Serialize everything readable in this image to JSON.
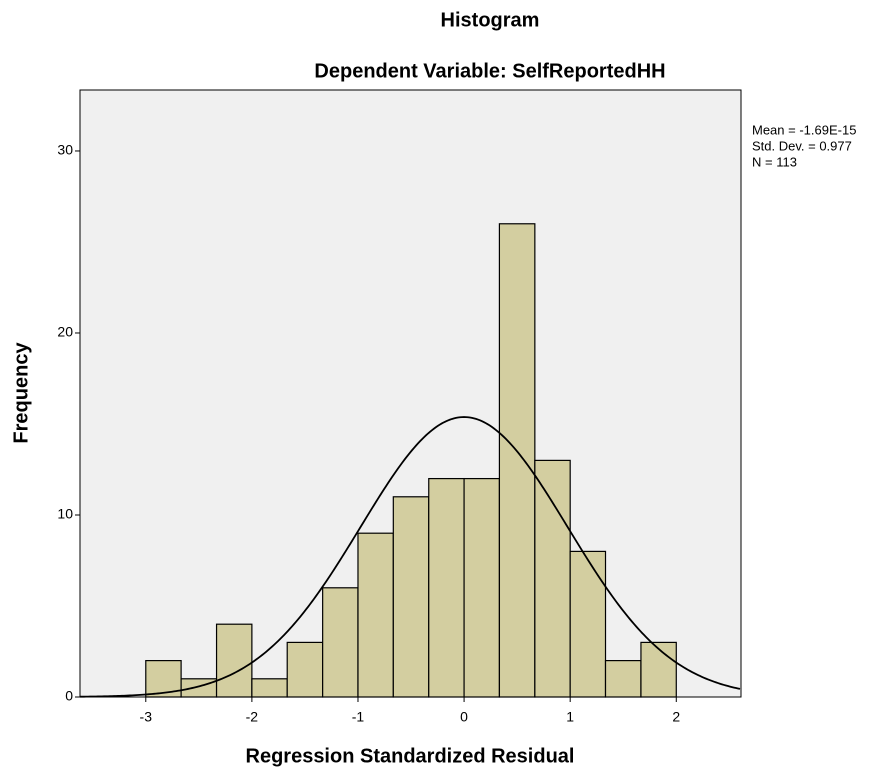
{
  "chart_data": {
    "type": "histogram",
    "title": "Histogram",
    "subtitle": "Dependent Variable: SelfReportedHH",
    "x_label": "Regression Standardized Residual",
    "y_label": "Frequency",
    "bins": [
      -3,
      -2.667,
      -2.333,
      -2,
      -1.667,
      -1.333,
      -1,
      -0.667,
      -0.333,
      0,
      0.333,
      0.667,
      1,
      1.333,
      1.667,
      2
    ],
    "values": [
      2,
      1,
      4,
      1,
      3,
      6,
      9,
      11,
      12,
      12,
      26,
      13,
      8,
      2,
      3
    ],
    "color": "#d3cea0",
    "xlim": [
      -3.62,
      2.61
    ],
    "xticks": [
      -3,
      -2,
      -1,
      0,
      1,
      2
    ],
    "ylim": [
      0,
      33.35
    ],
    "yticks": [
      0,
      10,
      20,
      30
    ],
    "curve": {
      "mean": -1.69e-15,
      "sd": 0.977,
      "n": 113
    },
    "annotations": [
      "Mean = -1.69E-15",
      "Std. Dev. = 0.977",
      "N = 113"
    ]
  }
}
